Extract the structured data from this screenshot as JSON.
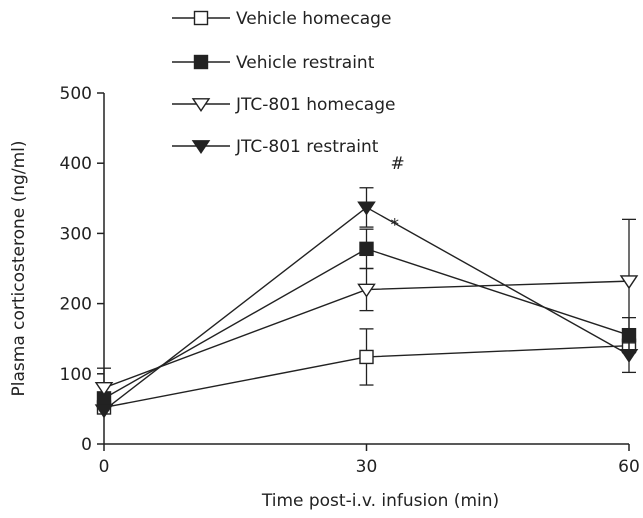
{
  "chart_data": {
    "type": "line",
    "title": "",
    "xlabel": "Time post-i.v. infusion (min)",
    "ylabel": "Plasma corticosterone (ng/ml)",
    "x": [
      0,
      30,
      60
    ],
    "xticks": [
      "0",
      "30",
      "60"
    ],
    "yticks": [
      "0",
      "100",
      "200",
      "300",
      "400",
      "500"
    ],
    "xlim": [
      0,
      60
    ],
    "ylim": [
      0,
      500
    ],
    "grid": false,
    "legend_position": "top-center",
    "series": [
      {
        "name": "Vehicle homecage",
        "marker": "square-open",
        "values": [
          52,
          124,
          140
        ],
        "errors": [
          null,
          40,
          null
        ]
      },
      {
        "name": "Vehicle restraint",
        "marker": "square-filled",
        "values": [
          65,
          278,
          155
        ],
        "errors": [
          null,
          28,
          25
        ]
      },
      {
        "name": "JTC-801 homecage",
        "marker": "triangle-down-open",
        "values": [
          80,
          220,
          232
        ],
        "errors": [
          28,
          30,
          88
        ]
      },
      {
        "name": "JTC-801 restraint",
        "marker": "triangle-down-filled",
        "values": [
          48,
          337,
          127
        ],
        "errors": [
          null,
          28,
          25
        ]
      }
    ],
    "annotations": [
      {
        "text": "#",
        "x": 30,
        "y": 380
      },
      {
        "text": "*",
        "x": 30,
        "y": 310
      }
    ]
  }
}
